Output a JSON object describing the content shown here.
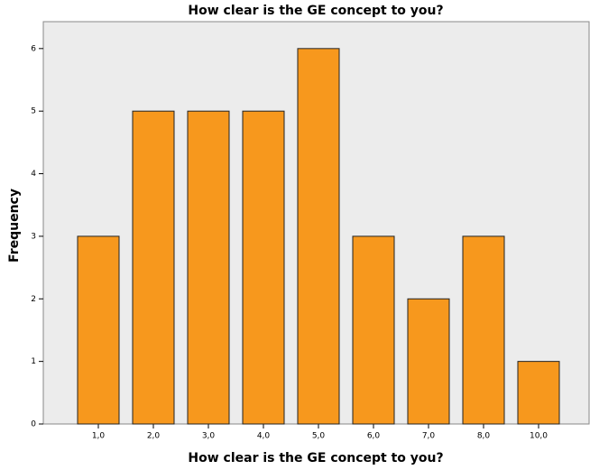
{
  "chart_data": {
    "type": "bar",
    "title": "How clear is the GE concept to you?",
    "x_label": "How clear is the GE concept to you?",
    "y_label": "Frequency",
    "categories": [
      "1,0",
      "2,0",
      "3,0",
      "4,0",
      "5,0",
      "6,0",
      "7,0",
      "8,0",
      "10,0"
    ],
    "values": [
      3,
      5,
      5,
      5,
      6,
      3,
      2,
      3,
      1
    ],
    "color": "#f7981d",
    "ylim": [
      0,
      6.43
    ],
    "yticks": [
      0,
      1,
      2,
      3,
      4,
      5,
      6
    ],
    "grid": false
  }
}
